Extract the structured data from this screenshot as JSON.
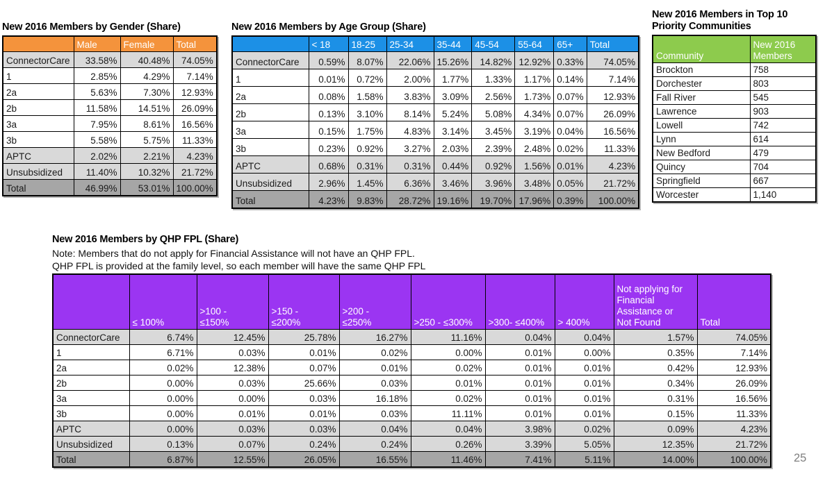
{
  "page_number": "25",
  "colors": {
    "orange_header": "#F4933C",
    "blue_header": "#1C90E6",
    "green_header": "#8DCB4D",
    "purple_header": "#9B35F2",
    "row_light_gray": "#D9D9D9",
    "row_dark_gray": "#A6A6A6",
    "header_text": "#FFFFFF"
  },
  "gender_table": {
    "title": "New 2016 Members by Gender (Share)",
    "columns": [
      "",
      "Male",
      "Female",
      "Total"
    ],
    "rows": [
      {
        "label": "ConnectorCare",
        "shade": "light",
        "values": [
          "33.58%",
          "40.48%",
          "74.05%"
        ]
      },
      {
        "label": "1",
        "shade": "white",
        "values": [
          "2.85%",
          "4.29%",
          "7.14%"
        ]
      },
      {
        "label": "2a",
        "shade": "white",
        "values": [
          "5.63%",
          "7.30%",
          "12.93%"
        ]
      },
      {
        "label": "2b",
        "shade": "white",
        "values": [
          "11.58%",
          "14.51%",
          "26.09%"
        ]
      },
      {
        "label": "3a",
        "shade": "white",
        "values": [
          "7.95%",
          "8.61%",
          "16.56%"
        ]
      },
      {
        "label": "3b",
        "shade": "white",
        "values": [
          "5.58%",
          "5.75%",
          "11.33%"
        ]
      },
      {
        "label": "APTC",
        "shade": "light",
        "values": [
          "2.02%",
          "2.21%",
          "4.23%"
        ]
      },
      {
        "label": "Unsubsidized",
        "shade": "light",
        "values": [
          "11.40%",
          "10.32%",
          "21.72%"
        ]
      },
      {
        "label": "Total",
        "shade": "dark",
        "values": [
          "46.99%",
          "53.01%",
          "100.00%"
        ]
      }
    ]
  },
  "age_table": {
    "title": "New 2016 Members by Age Group (Share)",
    "columns": [
      "",
      "< 18",
      "18-25",
      "25-34",
      "35-44",
      "45-54",
      "55-64",
      "65+",
      "Total"
    ],
    "rows": [
      {
        "label": "ConnectorCare",
        "shade": "light",
        "values": [
          "0.59%",
          "8.07%",
          "22.06%",
          "15.26%",
          "14.82%",
          "12.92%",
          "0.33%",
          "74.05%"
        ]
      },
      {
        "label": "1",
        "shade": "white",
        "values": [
          "0.01%",
          "0.72%",
          "2.00%",
          "1.77%",
          "1.33%",
          "1.17%",
          "0.14%",
          "7.14%"
        ]
      },
      {
        "label": "2a",
        "shade": "white",
        "values": [
          "0.08%",
          "1.58%",
          "3.83%",
          "3.09%",
          "2.56%",
          "1.73%",
          "0.07%",
          "12.93%"
        ]
      },
      {
        "label": "2b",
        "shade": "white",
        "values": [
          "0.13%",
          "3.10%",
          "8.14%",
          "5.24%",
          "5.08%",
          "4.34%",
          "0.07%",
          "26.09%"
        ]
      },
      {
        "label": "3a",
        "shade": "white",
        "values": [
          "0.15%",
          "1.75%",
          "4.83%",
          "3.14%",
          "3.45%",
          "3.19%",
          "0.04%",
          "16.56%"
        ]
      },
      {
        "label": "3b",
        "shade": "white",
        "values": [
          "0.23%",
          "0.92%",
          "3.27%",
          "2.03%",
          "2.39%",
          "2.48%",
          "0.02%",
          "11.33%"
        ]
      },
      {
        "label": "APTC",
        "shade": "light",
        "values": [
          "0.68%",
          "0.31%",
          "0.31%",
          "0.44%",
          "0.92%",
          "1.56%",
          "0.01%",
          "4.23%"
        ]
      },
      {
        "label": "Unsubsidized",
        "shade": "light",
        "values": [
          "2.96%",
          "1.45%",
          "6.36%",
          "3.46%",
          "3.96%",
          "3.48%",
          "0.05%",
          "21.72%"
        ]
      },
      {
        "label": "Total",
        "shade": "dark",
        "values": [
          "4.23%",
          "9.83%",
          "28.72%",
          "19.16%",
          "19.70%",
          "17.96%",
          "0.39%",
          "100.00%"
        ]
      }
    ]
  },
  "community_table": {
    "title": "New 2016 Members in Top 10 Priority Communities",
    "columns": [
      "Community",
      "New 2016\nMembers"
    ],
    "rows": [
      {
        "label": "Brockton",
        "shade": "white",
        "values": [
          "758"
        ]
      },
      {
        "label": "Dorchester",
        "shade": "white",
        "values": [
          "803"
        ]
      },
      {
        "label": "Fall River",
        "shade": "white",
        "values": [
          "545"
        ]
      },
      {
        "label": "Lawrence",
        "shade": "white",
        "values": [
          "903"
        ]
      },
      {
        "label": "Lowell",
        "shade": "white",
        "values": [
          "742"
        ]
      },
      {
        "label": "Lynn",
        "shade": "white",
        "values": [
          "614"
        ]
      },
      {
        "label": "New Bedford",
        "shade": "white",
        "values": [
          "479"
        ]
      },
      {
        "label": "Quincy",
        "shade": "white",
        "values": [
          "704"
        ]
      },
      {
        "label": "Springfield",
        "shade": "white",
        "values": [
          "667"
        ]
      },
      {
        "label": "Worcester",
        "shade": "white",
        "values": [
          "1,140"
        ]
      }
    ]
  },
  "fpl_table": {
    "title": "New 2016 Members by QHP FPL (Share)",
    "note_line1": "Note: Members that do not apply for Financial Assistance will not have an QHP FPL.",
    "note_line2": "QHP FPL is provided at the family level, so each member will have the same QHP FPL",
    "columns": [
      "",
      "≤ 100%",
      ">100 -\n≤150%",
      ">150 -\n≤200%",
      ">200 -\n≤250%",
      ">250 - ≤300%",
      ">300- ≤400%",
      "> 400%",
      "Not applying for\nFinancial\nAssistance or\nNot Found",
      "Total"
    ],
    "rows": [
      {
        "label": "ConnectorCare",
        "shade": "light",
        "values": [
          "6.74%",
          "12.45%",
          "25.78%",
          "16.27%",
          "11.16%",
          "0.04%",
          "0.04%",
          "1.57%",
          "74.05%"
        ]
      },
      {
        "label": "1",
        "shade": "white",
        "values": [
          "6.71%",
          "0.03%",
          "0.01%",
          "0.02%",
          "0.00%",
          "0.01%",
          "0.00%",
          "0.35%",
          "7.14%"
        ]
      },
      {
        "label": "2a",
        "shade": "white",
        "values": [
          "0.02%",
          "12.38%",
          "0.07%",
          "0.01%",
          "0.02%",
          "0.01%",
          "0.01%",
          "0.42%",
          "12.93%"
        ]
      },
      {
        "label": "2b",
        "shade": "white",
        "values": [
          "0.00%",
          "0.03%",
          "25.66%",
          "0.03%",
          "0.01%",
          "0.01%",
          "0.01%",
          "0.34%",
          "26.09%"
        ]
      },
      {
        "label": "3a",
        "shade": "white",
        "values": [
          "0.00%",
          "0.00%",
          "0.03%",
          "16.18%",
          "0.02%",
          "0.01%",
          "0.01%",
          "0.31%",
          "16.56%"
        ]
      },
      {
        "label": "3b",
        "shade": "white",
        "values": [
          "0.00%",
          "0.01%",
          "0.01%",
          "0.03%",
          "11.11%",
          "0.01%",
          "0.01%",
          "0.15%",
          "11.33%"
        ]
      },
      {
        "label": "APTC",
        "shade": "light",
        "values": [
          "0.00%",
          "0.03%",
          "0.03%",
          "0.04%",
          "0.04%",
          "3.98%",
          "0.02%",
          "0.09%",
          "4.23%"
        ]
      },
      {
        "label": "Unsubsidized",
        "shade": "light",
        "values": [
          "0.13%",
          "0.07%",
          "0.24%",
          "0.24%",
          "0.26%",
          "3.39%",
          "5.05%",
          "12.35%",
          "21.72%"
        ]
      },
      {
        "label": "Total",
        "shade": "dark",
        "values": [
          "6.87%",
          "12.55%",
          "26.05%",
          "16.55%",
          "11.46%",
          "7.41%",
          "5.11%",
          "14.00%",
          "100.00%"
        ]
      }
    ]
  }
}
